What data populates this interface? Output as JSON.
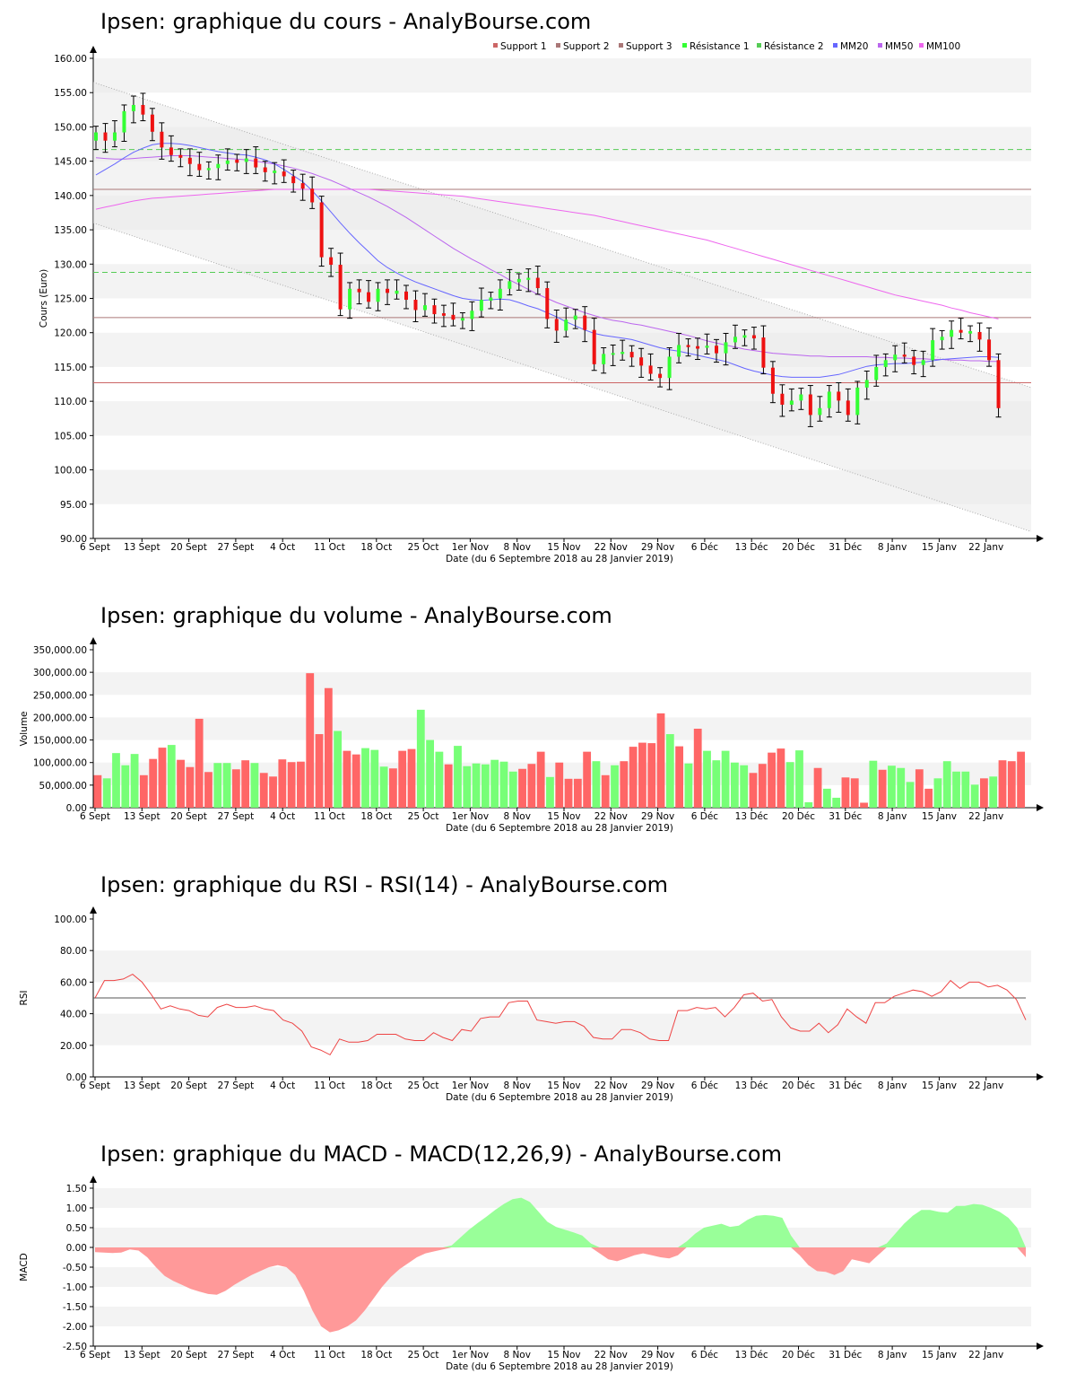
{
  "x_axis": {
    "ticks": [
      "6 Sept",
      "13 Sept",
      "20 Sept",
      "27 Sept",
      "4 Oct",
      "11 Oct",
      "18 Oct",
      "25 Oct",
      "1er Nov",
      "8 Nov",
      "15 Nov",
      "22 Nov",
      "29 Nov",
      "6 Déc",
      "13 Déc",
      "20 Déc",
      "31 Déc",
      "8 Janv",
      "15 Janv",
      "22 Janv"
    ],
    "label": "Date (du 6 Septembre 2018 au 28 Janvier 2019)"
  },
  "colors": {
    "up": "#33ff33",
    "down": "#ee1111",
    "vol_up": "#77ff77",
    "vol_down": "#ff6666",
    "mm20": "#6666ff",
    "mm50": "#bb66ee",
    "mm100": "#ee66ee",
    "support": "#cc6666",
    "support2": "#aa7777",
    "resist": "#55cc55",
    "rsi": "#ee4444",
    "macd_pos": "#99ff99",
    "macd_neg": "#ff9999"
  },
  "chart_data": [
    {
      "type": "candlestick",
      "title": "Ipsen: graphique du cours - AnalyBourse.com",
      "ylabel": "Cours (Euro)",
      "ylim": [
        90,
        160
      ],
      "yticks": [
        "90.00",
        "95.00",
        "100.00",
        "105.00",
        "110.00",
        "115.00",
        "120.00",
        "125.00",
        "130.00",
        "135.00",
        "140.00",
        "145.00",
        "150.00",
        "155.00",
        "160.00"
      ],
      "legend": [
        "Support 1",
        "Support 2",
        "Support 3",
        "Résistance 1",
        "Résistance 2",
        "MM20",
        "MM50",
        "MM100"
      ],
      "levels": {
        "support1": 112.7,
        "support2": 122.2,
        "support3": 140.9,
        "resistance1": 128.8,
        "resistance2": 146.7
      },
      "channel": {
        "upper": [
          156.5,
          112.0
        ],
        "lower": [
          136.0,
          91.0
        ]
      },
      "close": [
        149.2,
        148.0,
        149.2,
        152.3,
        153.2,
        151.8,
        149.3,
        147.0,
        145.9,
        145.5,
        144.6,
        143.7,
        144.0,
        144.6,
        145.1,
        144.9,
        145.4,
        144.1,
        143.4,
        143.5,
        142.8,
        141.8,
        141.0,
        139.0,
        131.0,
        129.9,
        123.4,
        126.4,
        125.9,
        124.5,
        126.4,
        125.8,
        126.0,
        124.8,
        123.3,
        124.0,
        122.7,
        122.6,
        121.9,
        122.0,
        123.2,
        124.8,
        125.0,
        126.4,
        127.5,
        127.7,
        128.0,
        126.5,
        122.0,
        120.3,
        121.9,
        122.5,
        120.4,
        115.4,
        116.9,
        116.9,
        117.2,
        116.4,
        115.2,
        114.0,
        113.4,
        116.5,
        118.2,
        117.9,
        117.8,
        118.1,
        117.0,
        118.6,
        119.4,
        119.5,
        119.3,
        114.9,
        111.1,
        109.5,
        110.1,
        111.0,
        108.0,
        109.0,
        111.4,
        110.1,
        108.0,
        112.0,
        113.1,
        115.0,
        116.0,
        116.8,
        116.5,
        115.3,
        116.0,
        118.9,
        119.4,
        120.4,
        120.0,
        120.1,
        119.0,
        116.0,
        109.0
      ],
      "mm20": [
        143.0,
        143.8,
        144.6,
        145.5,
        146.3,
        146.9,
        147.4,
        147.6,
        147.6,
        147.5,
        147.3,
        147.0,
        146.7,
        146.4,
        146.2,
        146.0,
        145.9,
        145.6,
        145.2,
        144.6,
        143.8,
        142.9,
        142.0,
        140.7,
        139.2,
        137.6,
        136.0,
        134.5,
        133.1,
        131.8,
        130.5,
        129.5,
        128.7,
        128.0,
        127.4,
        126.9,
        126.4,
        125.9,
        125.4,
        125.0,
        124.8,
        124.7,
        124.8,
        124.9,
        124.8,
        124.4,
        123.9,
        123.5,
        122.9,
        122.3,
        121.6,
        121.0,
        120.4,
        119.9,
        119.6,
        119.4,
        119.2,
        119.0,
        118.6,
        118.2,
        117.8,
        117.5,
        117.3,
        117.0,
        116.7,
        116.4,
        116.1,
        115.8,
        115.3,
        114.8,
        114.4,
        114.1,
        113.8,
        113.6,
        113.5,
        113.5,
        113.5,
        113.5,
        113.7,
        113.9,
        114.3,
        114.7,
        115.1,
        115.3,
        115.4,
        115.5,
        115.5,
        115.6,
        115.7,
        115.9,
        116.1,
        116.2,
        116.3,
        116.4,
        116.5,
        116.5,
        116.4
      ],
      "mm50": [
        145.5,
        145.4,
        145.3,
        145.3,
        145.4,
        145.5,
        145.6,
        145.7,
        145.8,
        145.8,
        145.8,
        145.7,
        145.6,
        145.5,
        145.4,
        145.3,
        145.2,
        145.0,
        144.8,
        144.6,
        144.3,
        144.0,
        143.6,
        143.2,
        142.7,
        142.2,
        141.6,
        141.0,
        140.4,
        139.8,
        139.1,
        138.4,
        137.6,
        136.8,
        135.9,
        135.0,
        134.1,
        133.2,
        132.3,
        131.5,
        130.7,
        130.0,
        129.2,
        128.5,
        127.7,
        127.0,
        126.3,
        125.6,
        125.0,
        124.4,
        123.9,
        123.4,
        122.9,
        122.5,
        122.1,
        121.8,
        121.6,
        121.3,
        121.1,
        120.8,
        120.5,
        120.2,
        119.9,
        119.6,
        119.2,
        118.8,
        118.5,
        118.2,
        117.9,
        117.6,
        117.4,
        117.2,
        117.0,
        116.9,
        116.8,
        116.7,
        116.6,
        116.6,
        116.5,
        116.5,
        116.5,
        116.5,
        116.5,
        116.4,
        116.4,
        116.3,
        116.3,
        116.2,
        116.2,
        116.1,
        116.1,
        116.0,
        116.0,
        115.9,
        115.9,
        115.8,
        115.8
      ],
      "mm100": [
        138.0,
        138.3,
        138.6,
        138.9,
        139.2,
        139.4,
        139.6,
        139.7,
        139.8,
        139.9,
        140.0,
        140.1,
        140.2,
        140.3,
        140.4,
        140.5,
        140.6,
        140.7,
        140.8,
        140.9,
        140.9,
        140.9,
        140.9,
        140.9,
        140.9,
        140.9,
        140.9,
        140.9,
        140.9,
        140.9,
        140.8,
        140.7,
        140.6,
        140.5,
        140.4,
        140.3,
        140.2,
        140.1,
        140.0,
        139.9,
        139.7,
        139.5,
        139.3,
        139.1,
        138.9,
        138.7,
        138.5,
        138.3,
        138.1,
        137.9,
        137.7,
        137.5,
        137.3,
        137.1,
        136.8,
        136.5,
        136.2,
        135.9,
        135.6,
        135.3,
        135.0,
        134.7,
        134.4,
        134.1,
        133.8,
        133.5,
        133.1,
        132.7,
        132.3,
        131.9,
        131.5,
        131.1,
        130.7,
        130.3,
        129.9,
        129.5,
        129.1,
        128.7,
        128.3,
        127.9,
        127.5,
        127.1,
        126.7,
        126.3,
        125.9,
        125.5,
        125.2,
        124.9,
        124.6,
        124.3,
        124.0,
        123.6,
        123.3,
        122.9,
        122.6,
        122.3,
        122.0
      ],
      "dates_note": ""
    },
    {
      "type": "bar",
      "title": "Ipsen: graphique du volume - AnalyBourse.com",
      "ylabel": "Volume",
      "ylim": [
        0,
        350000
      ],
      "yticks": [
        "0.00",
        "50,000.00",
        "100,000.00",
        "150,000.00",
        "200,000.00",
        "250,000.00",
        "300,000.00",
        "350,000.00"
      ],
      "values": [
        72000,
        65000,
        121000,
        94000,
        119000,
        72000,
        108000,
        133000,
        139000,
        106000,
        90000,
        197000,
        79000,
        99000,
        99000,
        85000,
        105000,
        99000,
        77000,
        69000,
        107000,
        101000,
        102000,
        298000,
        163000,
        265000,
        170000,
        126000,
        118000,
        132000,
        128000,
        91000,
        87000,
        126000,
        130000,
        217000,
        150000,
        124000,
        96000,
        137000,
        92000,
        98000,
        96000,
        106000,
        102000,
        80000,
        86000,
        97000,
        124000,
        68000,
        100000,
        64000,
        64000,
        124000,
        103000,
        72000,
        94000,
        103000,
        135000,
        144000,
        143000,
        209000,
        163000,
        136000,
        98000,
        175000,
        126000,
        105000,
        126000,
        100000,
        94000,
        77000,
        97000,
        122000,
        131000,
        101000,
        127000,
        12000,
        88000,
        42000,
        22000,
        67000,
        65000,
        11000,
        104000,
        84000,
        93000,
        88000,
        57000,
        85000,
        42000,
        65000,
        103000,
        80000,
        80000,
        51000,
        65000,
        69000,
        105000,
        103000,
        124000
      ],
      "up": [
        false,
        true,
        true,
        true,
        true,
        false,
        false,
        false,
        true,
        false,
        false,
        false,
        false,
        true,
        true,
        false,
        false,
        true,
        false,
        false,
        false,
        false,
        false,
        false,
        false,
        false,
        true,
        false,
        false,
        true,
        true,
        true,
        false,
        false,
        false,
        true,
        true,
        true,
        false,
        true,
        true,
        true,
        true,
        true,
        true,
        true,
        false,
        false,
        false,
        true,
        false,
        false,
        false,
        false,
        true,
        false,
        true,
        false,
        false,
        false,
        false,
        false,
        true,
        false,
        true,
        false,
        true,
        true,
        true,
        true,
        true,
        false,
        false,
        false,
        false,
        true,
        true,
        true,
        false,
        true,
        true,
        false,
        false,
        false,
        true,
        false,
        true,
        true,
        true,
        false,
        false,
        true,
        true,
        true,
        true,
        true,
        false,
        true,
        false,
        false,
        false
      ],
      "type_note": ""
    },
    {
      "type": "line",
      "title": "Ipsen: graphique du RSI - RSI(14) - AnalyBourse.com",
      "ylabel": "RSI",
      "ylim": [
        0,
        100
      ],
      "yticks": [
        "0.00",
        "20.00",
        "40.00",
        "60.00",
        "80.00",
        "100.00"
      ],
      "reference": 50,
      "values": [
        50,
        61,
        61,
        62,
        65,
        60,
        52,
        43,
        45,
        43,
        42,
        39,
        38,
        44,
        46,
        44,
        44,
        45,
        43,
        42,
        36,
        34,
        29,
        19,
        17,
        14,
        24,
        22,
        22,
        23,
        27,
        27,
        27,
        24,
        23,
        23,
        28,
        25,
        23,
        30,
        29,
        37,
        38,
        38,
        47,
        48,
        48,
        36,
        35,
        34,
        35,
        35,
        32,
        25,
        24,
        24,
        30,
        30,
        28,
        24,
        23,
        23,
        42,
        42,
        44,
        43,
        44,
        38,
        44,
        52,
        53,
        48,
        49,
        38,
        31,
        29,
        29,
        34,
        28,
        33,
        43,
        38,
        34,
        47,
        47,
        51,
        53,
        55,
        54,
        51,
        54,
        61,
        56,
        60,
        60,
        57,
        58,
        55,
        49,
        36
      ],
      "series_note": ""
    },
    {
      "type": "area",
      "title": "Ipsen: graphique du MACD - MACD(12,26,9) - AnalyBourse.com",
      "ylabel": "MACD",
      "ylim": [
        -2.5,
        1.5
      ],
      "yticks": [
        "-2.50",
        "-2.00",
        "-1.50",
        "-1.00",
        "-0.50",
        "0.00",
        "0.50",
        "1.00",
        "1.50"
      ],
      "values": [
        -0.12,
        -0.13,
        -0.14,
        -0.13,
        -0.05,
        -0.08,
        -0.25,
        -0.5,
        -0.72,
        -0.85,
        -0.95,
        -1.05,
        -1.12,
        -1.18,
        -1.2,
        -1.1,
        -0.95,
        -0.82,
        -0.7,
        -0.6,
        -0.5,
        -0.45,
        -0.5,
        -0.7,
        -1.1,
        -1.6,
        -2.0,
        -2.15,
        -2.1,
        -2.0,
        -1.85,
        -1.6,
        -1.3,
        -1.0,
        -0.75,
        -0.55,
        -0.4,
        -0.25,
        -0.15,
        -0.1,
        -0.05,
        0.05,
        0.25,
        0.45,
        0.62,
        0.78,
        0.95,
        1.1,
        1.22,
        1.26,
        1.15,
        0.9,
        0.65,
        0.52,
        0.45,
        0.38,
        0.3,
        0.1,
        -0.15,
        -0.3,
        -0.35,
        -0.28,
        -0.2,
        -0.15,
        -0.2,
        -0.25,
        -0.28,
        -0.2,
        0.15,
        0.35,
        0.5,
        0.55,
        0.6,
        0.52,
        0.55,
        0.7,
        0.8,
        0.82,
        0.8,
        0.75,
        0.3,
        -0.2,
        -0.45,
        -0.6,
        -0.62,
        -0.7,
        -0.6,
        -0.3,
        -0.35,
        -0.4,
        -0.2,
        0.1,
        0.35,
        0.6,
        0.8,
        0.95,
        0.95,
        0.9,
        0.88,
        1.05,
        1.05,
        1.1,
        1.08,
        1.0,
        0.9,
        0.75,
        0.5,
        -0.25
      ],
      "values_note": ""
    }
  ]
}
